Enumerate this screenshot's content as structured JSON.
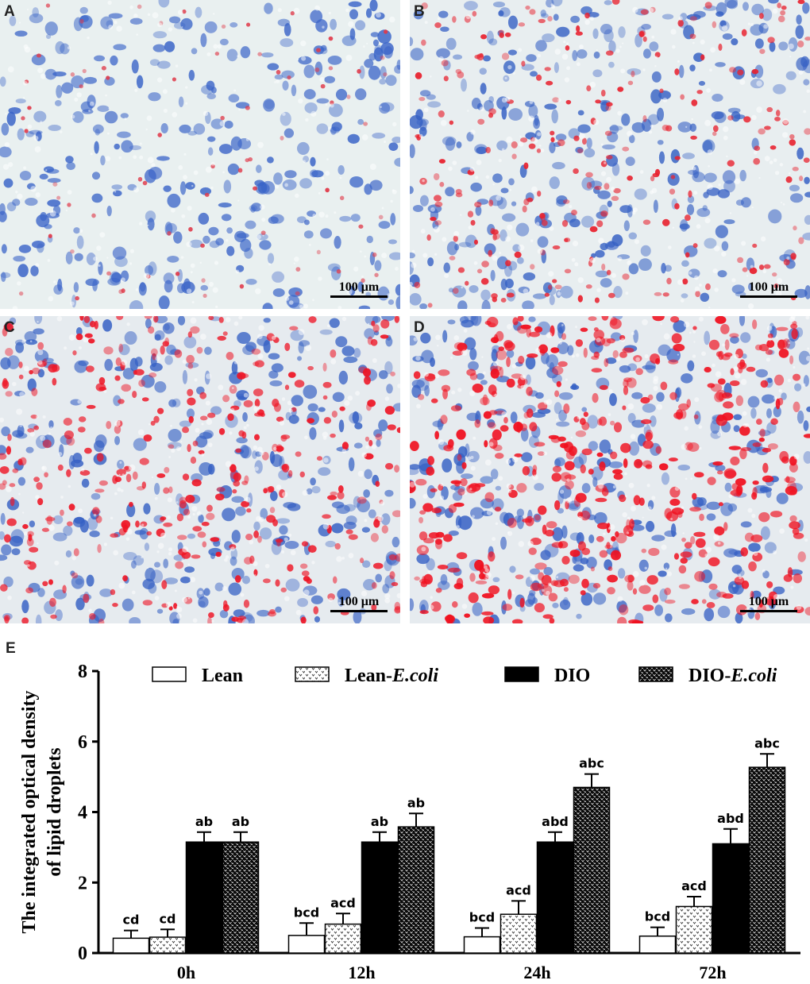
{
  "panels": [
    {
      "label": "A",
      "scale_bar": "100 μm",
      "bg": "#e9f0f0",
      "nuclei": "#3a64c8",
      "red": "#e03a4a",
      "red_density": 0.08
    },
    {
      "label": "B",
      "scale_bar": "100 μm",
      "bg": "#e8eef0",
      "nuclei": "#3560c4",
      "red": "#e8222f",
      "red_density": 0.35
    },
    {
      "label": "C",
      "scale_bar": "100 μm",
      "bg": "#e6ebef",
      "nuclei": "#3560c4",
      "red": "#ee1525",
      "red_density": 0.55
    },
    {
      "label": "D",
      "scale_bar": "100 μm",
      "bg": "#e6ebef",
      "nuclei": "#3560c4",
      "red": "#f0101f",
      "red_density": 0.75
    }
  ],
  "panel_e_label": "E",
  "chart_data": {
    "type": "bar",
    "categories": [
      "0h",
      "12h",
      "24h",
      "72h"
    ],
    "ylabel": "The integrated optical density of  lipid droplets",
    "xlabel": "",
    "ylim": [
      0,
      8
    ],
    "yticks": [
      0,
      2,
      4,
      6,
      8
    ],
    "grid": false,
    "legend_position": "top",
    "series": [
      {
        "name": "Lean",
        "style": "white",
        "values": [
          0.42,
          0.5,
          0.46,
          0.48
        ],
        "errors": [
          0.22,
          0.35,
          0.25,
          0.25
        ],
        "letters": [
          "cd",
          "bcd",
          "bcd",
          "bcd"
        ]
      },
      {
        "name": "Lean-E.coli",
        "style": "dotted",
        "values": [
          0.45,
          0.82,
          1.1,
          1.32
        ],
        "errors": [
          0.22,
          0.3,
          0.38,
          0.28
        ],
        "letters": [
          "cd",
          "acd",
          "acd",
          "acd"
        ]
      },
      {
        "name": "DIO",
        "style": "black",
        "values": [
          3.15,
          3.15,
          3.15,
          3.1
        ],
        "errors": [
          0.28,
          0.28,
          0.28,
          0.42
        ],
        "letters": [
          "ab",
          "ab",
          "abd",
          "abd"
        ]
      },
      {
        "name": "DIO-E.coli",
        "style": "dense",
        "values": [
          3.15,
          3.58,
          4.7,
          5.27
        ],
        "errors": [
          0.28,
          0.38,
          0.38,
          0.38
        ],
        "letters": [
          "ab",
          "ab",
          "abc",
          "abc"
        ]
      }
    ],
    "legend": [
      {
        "prefix": "Lean",
        "italic": ""
      },
      {
        "prefix": "Lean-",
        "italic": "E.coli"
      },
      {
        "prefix": "DIO",
        "italic": ""
      },
      {
        "prefix": "DIO-",
        "italic": "E.coli"
      }
    ]
  }
}
